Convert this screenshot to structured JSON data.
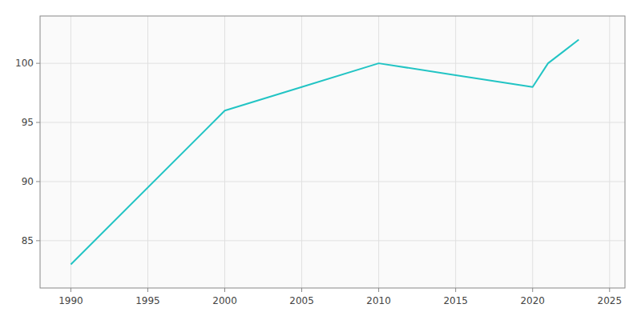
{
  "chart_data": {
    "type": "line",
    "x": [
      1990,
      2000,
      2005,
      2010,
      2015,
      2020,
      2021,
      2022,
      2023
    ],
    "values": [
      83,
      96,
      98,
      100,
      99,
      98,
      100,
      101,
      102
    ],
    "color": "#22c4c4",
    "xlim": [
      1988,
      2026
    ],
    "ylim": [
      81,
      104
    ],
    "xticks": [
      1990,
      1995,
      2000,
      2005,
      2010,
      2015,
      2020,
      2025
    ],
    "yticks": [
      85,
      90,
      95,
      100
    ],
    "grid": true
  }
}
